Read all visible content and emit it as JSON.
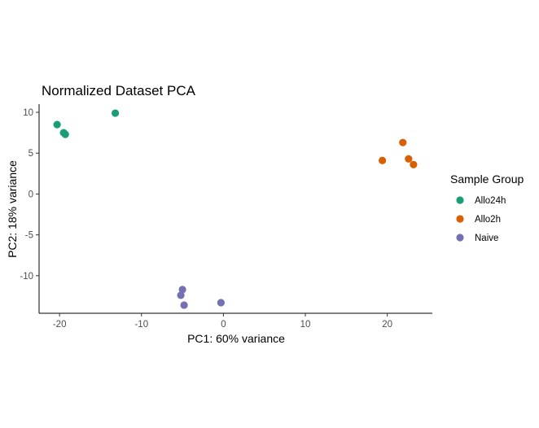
{
  "chart_data": {
    "type": "scatter",
    "title": "Normalized Dataset PCA",
    "xlabel": "PC1: 60% variance",
    "ylabel": "PC2: 18% variance",
    "xlim": [
      -22.5,
      25.5
    ],
    "ylim": [
      -14.6,
      11.0
    ],
    "xticks": [
      -20,
      -10,
      0,
      10,
      20
    ],
    "xtick_labels": [
      "-20",
      "-10",
      "0",
      "10",
      "20"
    ],
    "yticks": [
      10,
      5,
      0,
      -5,
      -10
    ],
    "ytick_labels": [
      "10",
      "5",
      "0",
      "-5",
      "-10"
    ],
    "grid": false,
    "legend": {
      "title": "Sample Group",
      "placement": "right"
    },
    "series": [
      {
        "name": "Allo24h",
        "color": "#1b9e77",
        "points": [
          [
            -20.3,
            8.5
          ],
          [
            -19.5,
            7.5
          ],
          [
            -19.3,
            7.3
          ],
          [
            -13.2,
            9.9
          ]
        ]
      },
      {
        "name": "Allo2h",
        "color": "#d95f02",
        "points": [
          [
            19.4,
            4.1
          ],
          [
            21.9,
            6.3
          ],
          [
            22.6,
            4.3
          ],
          [
            23.2,
            3.6
          ]
        ]
      },
      {
        "name": "Naive",
        "color": "#7570b3",
        "points": [
          [
            -5.0,
            -11.7
          ],
          [
            -5.2,
            -12.4
          ],
          [
            -4.8,
            -13.6
          ],
          [
            -0.3,
            -13.3
          ]
        ]
      }
    ]
  }
}
